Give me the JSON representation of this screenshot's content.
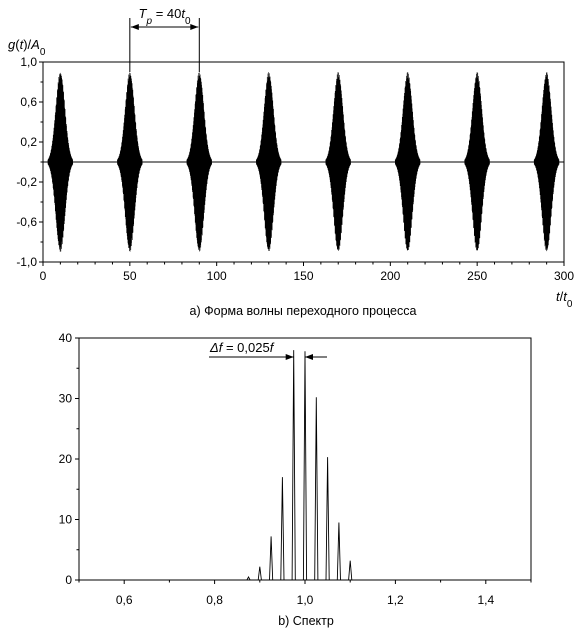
{
  "chart_data": [
    {
      "type": "line",
      "caption": "а) Форма волны переходного процесса",
      "ylabel": "g(t)/A0",
      "xlabel": "t/t0",
      "annotation": "Tp = 40t0",
      "xlim": [
        0,
        300
      ],
      "ylim": [
        -1.0,
        1.0
      ],
      "x_ticks": [
        0,
        50,
        100,
        150,
        200,
        250,
        300
      ],
      "x_tick_labels": [
        "0",
        "50",
        "100",
        "150",
        "200",
        "250",
        "300"
      ],
      "y_ticks": [
        -1.0,
        -0.6,
        -0.2,
        0.2,
        0.6,
        1.0
      ],
      "y_tick_labels": [
        "-1,0",
        "-0,6",
        "-0,2",
        "0,2",
        "0,6",
        "1,0"
      ],
      "burst_centers": [
        10,
        50,
        90,
        130,
        170,
        210,
        250,
        290
      ],
      "burst_peak": 0.9,
      "period_markers": [
        50,
        90
      ]
    },
    {
      "type": "bar",
      "caption": "b) Спектр",
      "annotation": "Δf = 0,025f",
      "xlim": [
        0.5,
        1.5
      ],
      "ylim": [
        0,
        40
      ],
      "x_ticks": [
        0.6,
        0.8,
        1.0,
        1.2,
        1.4
      ],
      "x_tick_labels": [
        "0,6",
        "0,8",
        "1,0",
        "1,2",
        "1,4"
      ],
      "y_ticks": [
        0,
        10,
        20,
        30,
        40
      ],
      "y_tick_labels": [
        "0",
        "10",
        "20",
        "30",
        "40"
      ],
      "x": [
        0.875,
        0.9,
        0.925,
        0.95,
        0.975,
        1.0,
        1.025,
        1.05,
        1.075,
        1.1
      ],
      "values": [
        0.5,
        2.2,
        7.2,
        17.0,
        38.0,
        37.8,
        30.2,
        20.3,
        9.5,
        3.2
      ],
      "delta_markers": [
        0.975,
        1.0
      ]
    }
  ]
}
